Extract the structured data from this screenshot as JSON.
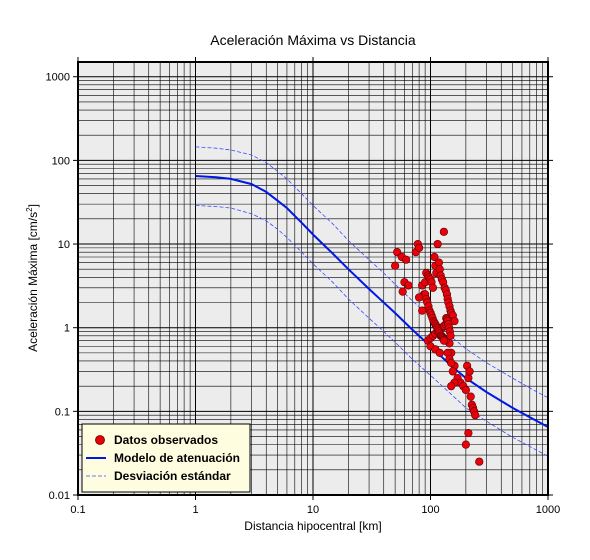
{
  "chart_data": {
    "type": "scatter",
    "title": "Aceleración Máxima vs Distancia",
    "xlabel": "Distancia hipocentral [km]",
    "ylabel_main": "Aceleración Máxima [cm/s",
    "ylabel_sup": "2",
    "ylabel_close": "]",
    "x_scale": "log",
    "y_scale": "log",
    "xlim": [
      0.1,
      1000
    ],
    "ylim": [
      0.01,
      1500
    ],
    "x_ticks": [
      {
        "value": 0.1,
        "label": "0.1"
      },
      {
        "value": 1,
        "label": "1"
      },
      {
        "value": 10,
        "label": "10"
      },
      {
        "value": 100,
        "label": "100"
      },
      {
        "value": 1000,
        "label": "1000"
      }
    ],
    "y_ticks": [
      {
        "value": 0.01,
        "label": "0.01"
      },
      {
        "value": 0.1,
        "label": "0.1"
      },
      {
        "value": 1,
        "label": "1"
      },
      {
        "value": 10,
        "label": "10"
      },
      {
        "value": 100,
        "label": "100"
      },
      {
        "value": 1000,
        "label": "1000"
      }
    ],
    "grid": true,
    "legend_position": "bottom-left",
    "colors": {
      "background": "#ececec",
      "points": "#e8000b",
      "model": "#0018e6",
      "deviation": "#3a4cff",
      "legend_bg": "#fffde0"
    },
    "legend": [
      {
        "name": "Datos observados",
        "kind": "point"
      },
      {
        "name": "Modelo de atenuación",
        "kind": "line"
      },
      {
        "name": "Desviación estándar",
        "kind": "dashed"
      }
    ],
    "series": [
      {
        "name": "Datos observados",
        "kind": "points",
        "x": [
          50,
          52,
          57,
          60,
          62,
          65,
          58,
          75,
          78,
          80,
          85,
          88,
          90,
          92,
          95,
          97,
          100,
          102,
          105,
          108,
          110,
          112,
          115,
          118,
          120,
          122,
          125,
          128,
          130,
          132,
          135,
          138,
          140,
          142,
          145,
          148,
          150,
          155,
          160,
          95,
          100,
          105,
          110,
          115,
          120,
          125,
          130,
          135,
          140,
          145,
          90,
          92,
          94,
          96,
          98,
          100,
          102,
          104,
          106,
          108,
          110,
          112,
          114,
          116,
          118,
          120,
          122,
          124,
          126,
          128,
          130,
          132,
          134,
          136,
          138,
          140,
          142,
          144,
          146,
          148,
          150,
          160,
          170,
          180,
          190,
          200,
          205,
          210,
          215,
          220,
          225,
          230,
          235,
          240,
          200,
          210,
          260,
          130,
          140,
          145,
          150,
          155,
          160,
          150,
          100,
          110,
          120,
          85,
          80
        ],
        "y": [
          5.5,
          8,
          7,
          3.5,
          6.5,
          3.2,
          2.7,
          8,
          10,
          9,
          3.2,
          2.5,
          3.5,
          4.5,
          4.2,
          4,
          3.8,
          3.5,
          3,
          7,
          5.5,
          4.5,
          10,
          6,
          5,
          4.2,
          3.8,
          3.5,
          14,
          3,
          2.8,
          2.5,
          2.2,
          2,
          1.8,
          1.6,
          1.5,
          1.4,
          1.2,
          0.7,
          0.75,
          0.8,
          0.85,
          0.9,
          0.95,
          1,
          1.05,
          1.1,
          1.15,
          0.65,
          2.5,
          2.2,
          2,
          1.8,
          1.6,
          1.5,
          1.4,
          1.3,
          1.2,
          1.15,
          1.1,
          1.05,
          1,
          0.95,
          0.9,
          0.85,
          0.8,
          0.8,
          0.78,
          0.76,
          0.74,
          0.72,
          0.7,
          1.3,
          1.25,
          1.2,
          1.1,
          1.0,
          0.9,
          0.8,
          0.5,
          0.35,
          0.25,
          0.22,
          0.2,
          0.18,
          0.35,
          0.25,
          0.3,
          0.15,
          0.12,
          0.11,
          0.1,
          0.09,
          0.04,
          0.055,
          0.025,
          0.7,
          0.5,
          0.42,
          0.38,
          0.3,
          0.22,
          0.2,
          0.6,
          0.55,
          0.5,
          1.6,
          2.3
        ]
      },
      {
        "name": "Modelo de atenuación",
        "kind": "line",
        "x": [
          1,
          1.5,
          2,
          3,
          4,
          5,
          6,
          8,
          10,
          15,
          20,
          30,
          40,
          50,
          70,
          100,
          150,
          200,
          300,
          500,
          700,
          1000
        ],
        "y": [
          65,
          63,
          60,
          52,
          42,
          33,
          27,
          18,
          13,
          7.5,
          5.0,
          2.9,
          2.0,
          1.5,
          0.95,
          0.6,
          0.35,
          0.25,
          0.17,
          0.11,
          0.085,
          0.065
        ]
      },
      {
        "name": "Desviación estándar",
        "kind": "dashed",
        "x": [
          1,
          1.5,
          2,
          3,
          4,
          5,
          6,
          8,
          10,
          15,
          20,
          30,
          40,
          50,
          70,
          100,
          150,
          200,
          300,
          500,
          700,
          1000
        ],
        "y": [
          145,
          140,
          133,
          116,
          94,
          74,
          60,
          40,
          29,
          17,
          11,
          6.5,
          4.5,
          3.3,
          2.1,
          1.34,
          0.78,
          0.56,
          0.38,
          0.25,
          0.19,
          0.145
        ]
      },
      {
        "name": "Desviación estándar",
        "kind": "dashed",
        "x": [
          1,
          1.5,
          2,
          3,
          4,
          5,
          6,
          8,
          10,
          15,
          20,
          30,
          40,
          50,
          70,
          100,
          150,
          200,
          300,
          500,
          700,
          1000
        ],
        "y": [
          29,
          28,
          27,
          23,
          19,
          15,
          12,
          8,
          5.8,
          3.4,
          2.2,
          1.3,
          0.9,
          0.67,
          0.42,
          0.27,
          0.16,
          0.11,
          0.076,
          0.049,
          0.038,
          0.029
        ]
      }
    ]
  }
}
